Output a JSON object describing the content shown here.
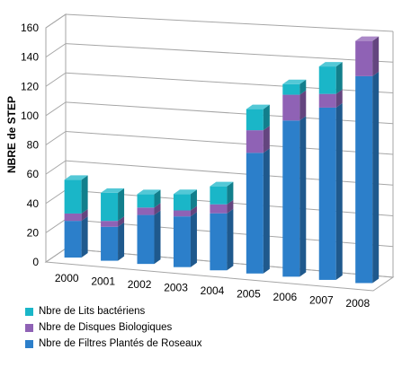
{
  "chart_data": {
    "type": "bar",
    "stacked": true,
    "three_d": true,
    "categories": [
      "2000",
      "2001",
      "2002",
      "2003",
      "2004",
      "2005",
      "2006",
      "2007",
      "2008"
    ],
    "series": [
      {
        "name": "Nbre de Filtres Plantés de Roseaux",
        "values": [
          25,
          23,
          33,
          34,
          38,
          80,
          103,
          113,
          135
        ],
        "color": "#2c7fca"
      },
      {
        "name": "Nbre de Disques Biologiques",
        "values": [
          5,
          4,
          5,
          4,
          6,
          15,
          17,
          9,
          23
        ],
        "color": "#8f62b5"
      },
      {
        "name": "Nbre de Lits bactériens",
        "values": [
          23,
          19,
          9,
          11,
          12,
          14,
          7,
          18,
          0
        ],
        "color": "#1ab6c8"
      }
    ],
    "ylabel": "NBRE de STEP",
    "xlabel": "",
    "ylim": [
      0,
      160
    ],
    "yticks": [
      0,
      20,
      40,
      60,
      80,
      100,
      120,
      140,
      160
    ],
    "grid": true,
    "legend_position": "bottom-left"
  }
}
